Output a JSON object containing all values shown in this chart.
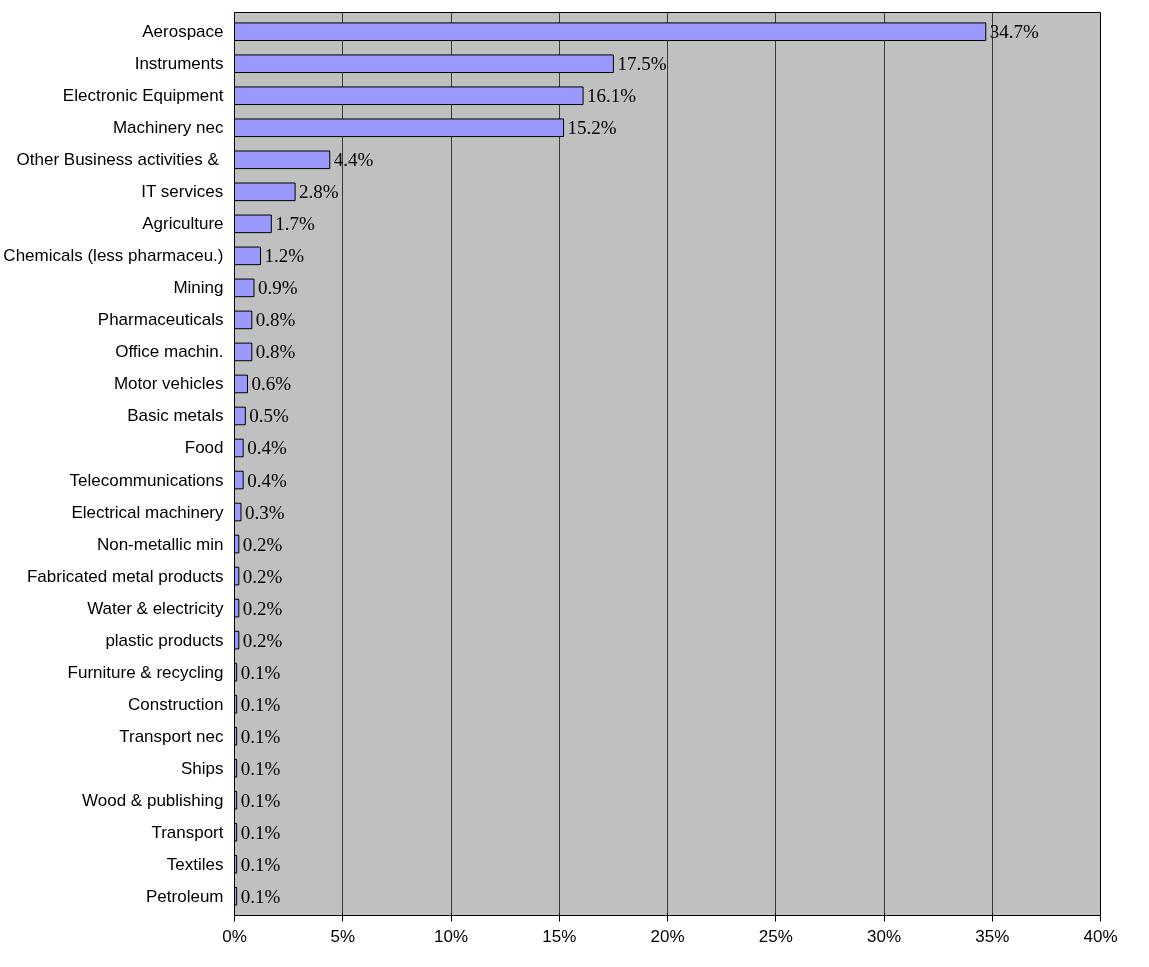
{
  "chart_data": {
    "type": "bar",
    "orientation": "horizontal",
    "categories": [
      "Aerospace",
      "Instruments",
      "Electronic Equipment",
      "Machinery nec",
      "Other Business activities & ",
      "IT services",
      "Agriculture",
      "Chemicals (less pharmaceu.)",
      "Mining",
      "Pharmaceuticals",
      "Office machin.",
      "Motor vehicles",
      "Basic metals",
      "Food",
      "Telecommunications",
      "Electrical machinery",
      "Non-metallic min",
      "Fabricated metal products",
      "Water & electricity",
      "plastic products",
      "Furniture & recycling",
      "Construction",
      "Transport nec",
      "Ships",
      "Wood & publishing",
      "Transport",
      "Textiles",
      "Petroleum"
    ],
    "values": [
      34.7,
      17.5,
      16.1,
      15.2,
      4.4,
      2.8,
      1.7,
      1.2,
      0.9,
      0.8,
      0.8,
      0.6,
      0.5,
      0.4,
      0.4,
      0.3,
      0.2,
      0.2,
      0.2,
      0.2,
      0.1,
      0.1,
      0.1,
      0.1,
      0.1,
      0.1,
      0.1,
      0.1
    ],
    "value_labels": [
      "34.7%",
      "17.5%",
      "16.1%",
      "15.2%",
      "4.4%",
      "2.8%",
      "1.7%",
      "1.2%",
      "0.9%",
      "0.8%",
      "0.8%",
      "0.6%",
      "0.5%",
      "0.4%",
      "0.4%",
      "0.3%",
      "0.2%",
      "0.2%",
      "0.2%",
      "0.2%",
      "0.1%",
      "0.1%",
      "0.1%",
      "0.1%",
      "0.1%",
      "0.1%",
      "0.1%",
      "0.1%"
    ],
    "color": "#9999ff",
    "xlim": [
      0,
      40
    ],
    "xticks": [
      {
        "value": 0,
        "label": "0%"
      },
      {
        "value": 5,
        "label": "5%"
      },
      {
        "value": 10,
        "label": "10%"
      },
      {
        "value": 15,
        "label": "15%"
      },
      {
        "value": 20,
        "label": "20%"
      },
      {
        "value": 25,
        "label": "25%"
      },
      {
        "value": 30,
        "label": "30%"
      },
      {
        "value": 35,
        "label": "35%"
      },
      {
        "value": 40,
        "label": "40%"
      }
    ],
    "grid": "x"
  }
}
